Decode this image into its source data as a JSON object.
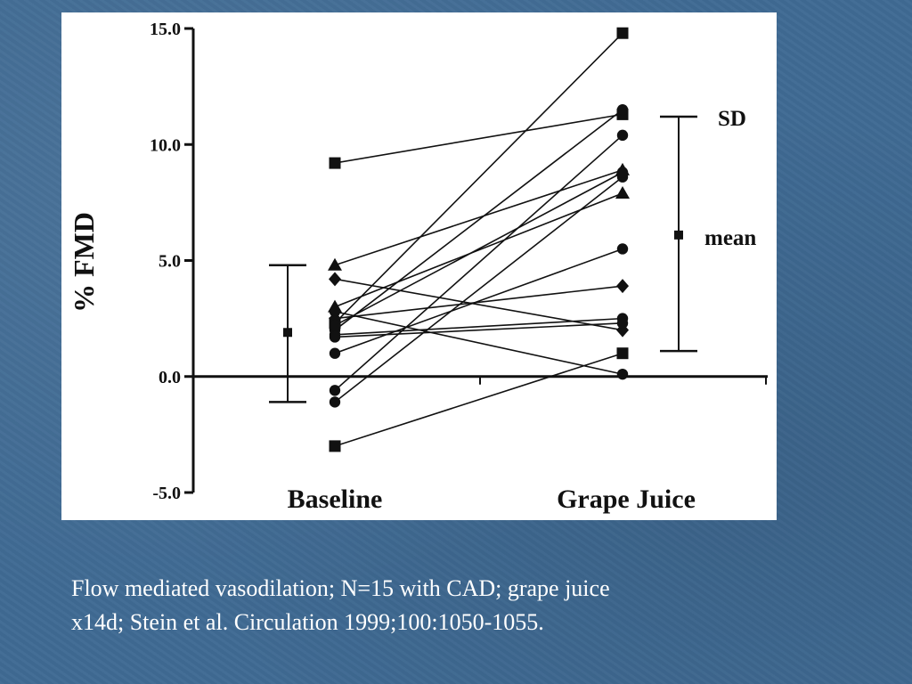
{
  "chart_data": {
    "type": "scatter",
    "ylabel": "% FMD",
    "ylim": [
      -5,
      15
    ],
    "yticks": [
      15,
      10,
      5,
      0,
      -5
    ],
    "ytick_labels": [
      "15.0",
      "10.0",
      "5.0",
      "0.0",
      "-5.0"
    ],
    "categories": [
      "Baseline",
      "Grape Juice"
    ],
    "pairs": [
      {
        "marker": "square",
        "values": [
          9.2,
          11.3
        ]
      },
      {
        "marker": "square",
        "values": [
          -3.0,
          1.0
        ]
      },
      {
        "marker": "square",
        "values": [
          2.3,
          14.8
        ]
      },
      {
        "marker": "triangle",
        "values": [
          4.8,
          8.9
        ]
      },
      {
        "marker": "triangle",
        "values": [
          3.0,
          7.9
        ]
      },
      {
        "marker": "diamond",
        "values": [
          4.2,
          2.0
        ]
      },
      {
        "marker": "diamond",
        "values": [
          2.5,
          3.9
        ]
      },
      {
        "marker": "circle",
        "values": [
          1.0,
          5.5
        ]
      },
      {
        "marker": "circle",
        "values": [
          -0.6,
          10.4
        ]
      },
      {
        "marker": "circle",
        "values": [
          -1.1,
          8.6
        ]
      },
      {
        "marker": "circle",
        "values": [
          2.8,
          0.1
        ]
      },
      {
        "marker": "circle",
        "values": [
          1.8,
          2.5
        ]
      },
      {
        "marker": "circle",
        "values": [
          2.0,
          11.5
        ]
      },
      {
        "marker": "circle",
        "values": [
          2.2,
          8.8
        ]
      },
      {
        "marker": "circle",
        "values": [
          1.7,
          2.3
        ]
      }
    ],
    "summary": [
      {
        "category": "Baseline",
        "mean": 1.9,
        "sd_low": -1.1,
        "sd_high": 4.8
      },
      {
        "category": "Grape Juice",
        "mean": 6.1,
        "sd_low": 1.1,
        "sd_high": 11.2
      }
    ],
    "annotations": {
      "sd": "SD",
      "mean": "mean"
    }
  },
  "caption": {
    "line1": "Flow mediated vasodilation;  N=15 with CAD;  grape juice",
    "line2": "x14d; Stein et al. Circulation 1999;100:1050-1055."
  }
}
